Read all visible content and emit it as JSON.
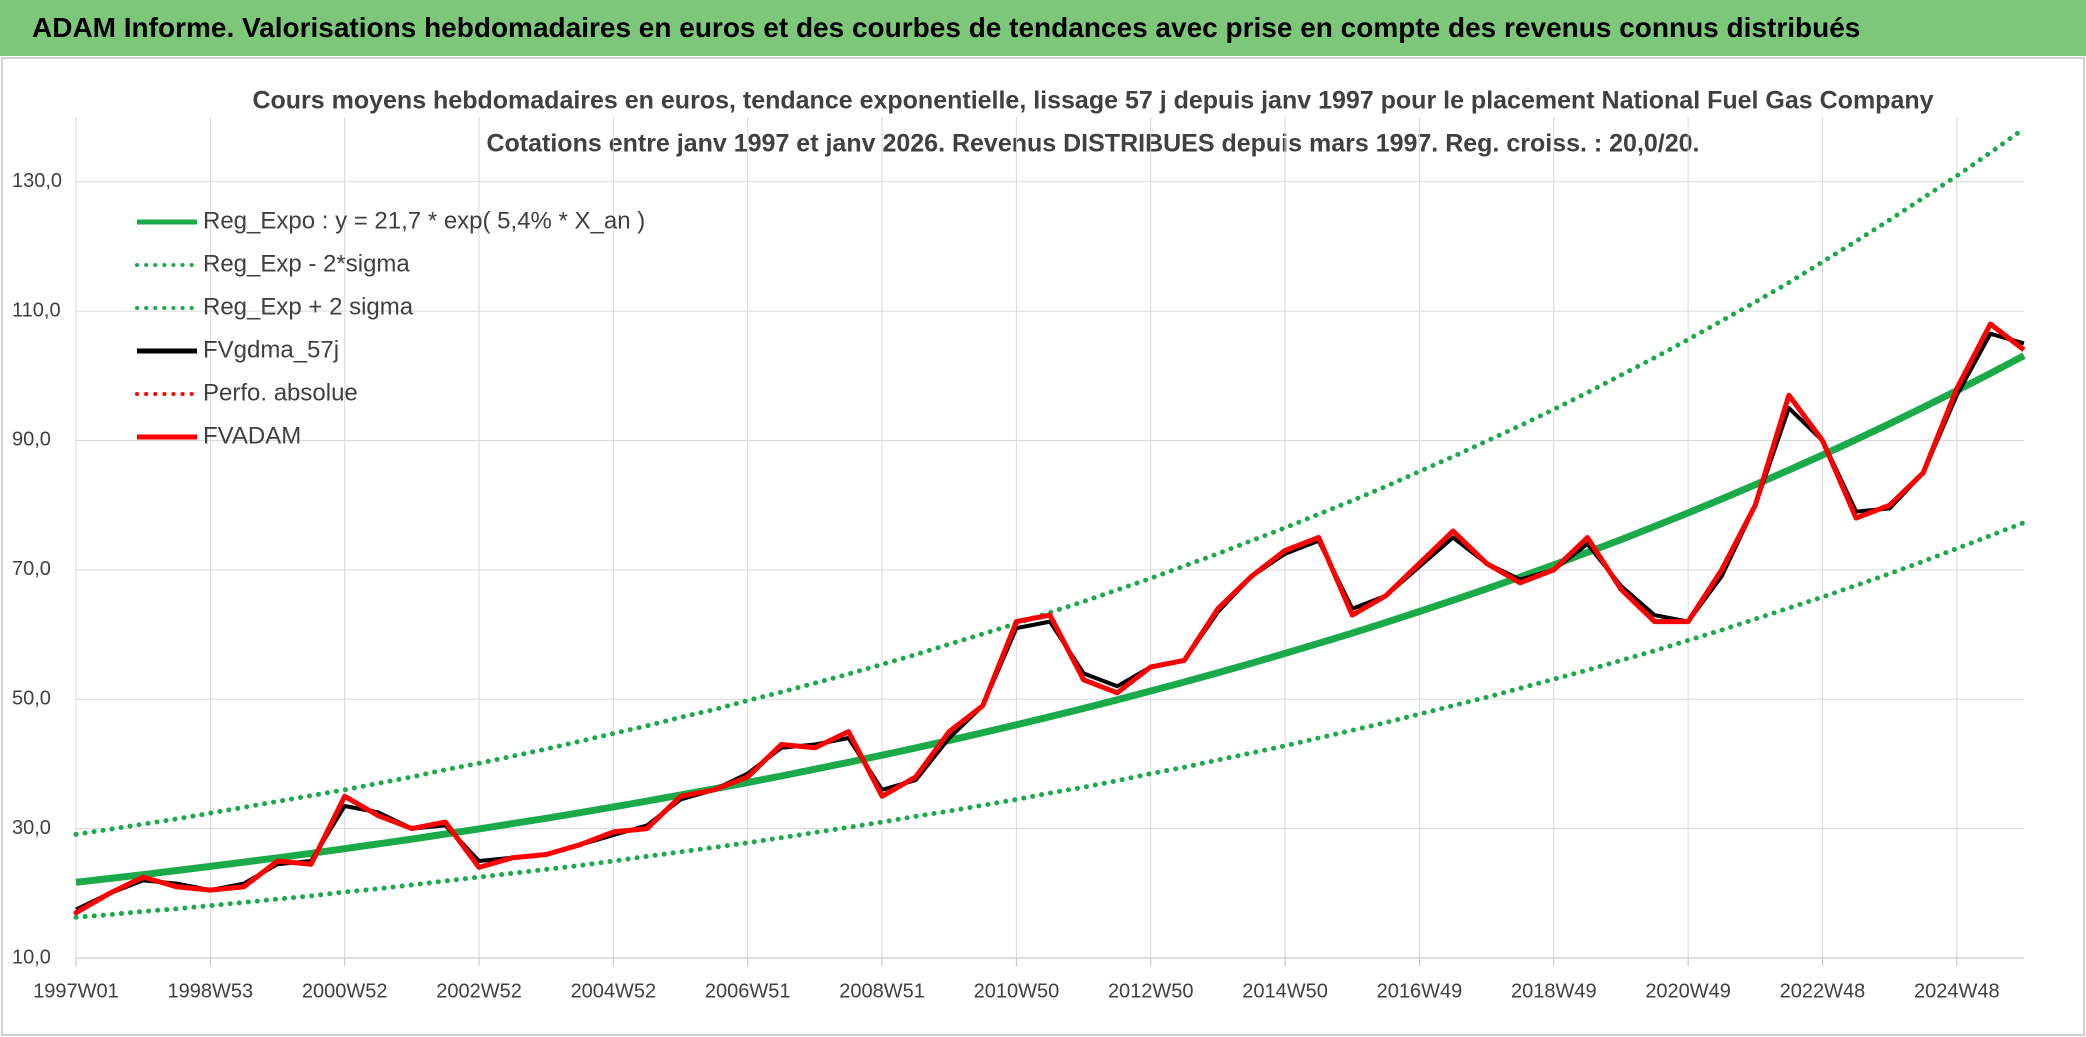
{
  "header": {
    "title": "ADAM Informe. Valorisations hebdomadaires en euros et des courbes de tendances avec prise en compte des revenus connus distribués"
  },
  "chart_data": {
    "type": "line",
    "title": "Cours moyens hebdomadaires en euros, tendance exponentielle, lissage 57 j depuis janv 1997 pour le placement National Fuel Gas Company",
    "subtitle": "Cotations entre janv 1997 et janv 2026. Revenus DISTRIBUES depuis mars 1997. Reg. croiss. : 20,0/20.",
    "categories": [
      "1997W01",
      null,
      null,
      null,
      "1998W53",
      null,
      null,
      null,
      "2000W52",
      null,
      null,
      null,
      "2002W52",
      null,
      null,
      null,
      "2004W52",
      null,
      null,
      null,
      "2006W51",
      null,
      null,
      null,
      "2008W51",
      null,
      null,
      null,
      "2010W50",
      null,
      null,
      null,
      "2012W50",
      null,
      null,
      null,
      "2014W50",
      null,
      null,
      null,
      "2016W49",
      null,
      null,
      null,
      "2018W49",
      null,
      null,
      null,
      "2020W49",
      null,
      null,
      null,
      "2022W48",
      null,
      null,
      null,
      "2024W48",
      null,
      null
    ],
    "ylim": [
      10,
      140
    ],
    "yticks": [
      {
        "value": 10,
        "label": "10,0"
      },
      {
        "value": 30,
        "label": "30,0"
      },
      {
        "value": 50,
        "label": "50,0"
      },
      {
        "value": 70,
        "label": "70,0"
      },
      {
        "value": 90,
        "label": "90,0"
      },
      {
        "value": 110,
        "label": "110,0"
      },
      {
        "value": 130,
        "label": "130,0"
      }
    ],
    "grid": true,
    "legend": "upper left",
    "series": [
      {
        "name": "Reg_Expo : y = 21,7 * exp( 5,4% *  X_an )",
        "color": "#1aaa4a",
        "style": "solid",
        "values": [
          21.7,
          22.29,
          22.89,
          23.52,
          24.16,
          24.82,
          25.49,
          26.19,
          26.9,
          27.63,
          28.38,
          29.16,
          29.95,
          30.77,
          31.6,
          32.46,
          33.35,
          34.26,
          35.19,
          36.15,
          37.13,
          38.14,
          39.18,
          40.25,
          41.35,
          42.47,
          43.63,
          44.82,
          46.04,
          47.3,
          48.58,
          49.91,
          51.27,
          52.66,
          54.1,
          55.57,
          57.08,
          58.64,
          60.23,
          61.88,
          63.56,
          65.29,
          67.07,
          68.9,
          70.77,
          72.7,
          74.68,
          76.72,
          78.81,
          80.95,
          83.16,
          85.42,
          87.75,
          90.14,
          92.59,
          95.11,
          97.71,
          100.37,
          103.1
        ]
      },
      {
        "name": "Reg_Exp - 2*sigma",
        "color": "#1aaa4a",
        "style": "dotted",
        "values": [
          16.3,
          16.7,
          17.2,
          17.6,
          18.1,
          18.6,
          19.1,
          19.6,
          20.2,
          20.7,
          21.3,
          21.9,
          22.5,
          23.1,
          23.7,
          24.3,
          25.0,
          25.7,
          26.4,
          27.1,
          27.8,
          28.6,
          29.4,
          30.2,
          31.0,
          31.9,
          32.7,
          33.6,
          34.5,
          35.5,
          36.4,
          37.4,
          38.5,
          39.5,
          40.6,
          41.7,
          42.8,
          44.0,
          45.2,
          46.4,
          47.7,
          49.0,
          50.3,
          51.7,
          53.1,
          54.5,
          56.0,
          57.5,
          59.1,
          60.7,
          62.4,
          64.1,
          65.8,
          67.6,
          69.4,
          71.3,
          73.3,
          75.3,
          77.3
        ]
      },
      {
        "name": "Reg_Exp + 2 sigma",
        "color": "#1aaa4a",
        "style": "dotted",
        "values": [
          29.1,
          29.9,
          30.7,
          31.5,
          32.4,
          33.3,
          34.2,
          35.1,
          36.0,
          37.0,
          38.0,
          39.1,
          40.1,
          41.2,
          42.3,
          43.5,
          44.7,
          45.9,
          47.2,
          48.4,
          49.8,
          51.1,
          52.5,
          53.9,
          55.4,
          56.9,
          58.5,
          60.1,
          61.7,
          63.4,
          65.1,
          66.9,
          68.7,
          70.6,
          72.5,
          74.5,
          76.5,
          78.6,
          80.7,
          82.9,
          85.2,
          87.5,
          89.9,
          92.3,
          94.8,
          97.4,
          100.1,
          102.8,
          105.6,
          108.5,
          111.4,
          114.4,
          117.6,
          120.8,
          124.1,
          127.5,
          130.9,
          134.5,
          138.2
        ]
      },
      {
        "name": "FVgdma_57j",
        "color": "#000000",
        "style": "solid",
        "values": [
          17.5,
          20,
          22,
          21.5,
          20.5,
          21.5,
          24.5,
          25,
          33.5,
          32.5,
          30,
          30.5,
          25,
          25.5,
          26,
          27.5,
          29,
          30.5,
          34.5,
          36,
          38.5,
          42.5,
          43,
          44,
          36,
          37.5,
          44,
          49,
          61,
          62,
          54,
          52,
          55,
          56,
          63.5,
          69,
          72.5,
          74.5,
          64,
          66,
          70.5,
          75,
          71,
          68.5,
          70,
          74,
          67.5,
          63,
          62,
          69,
          80,
          95,
          90,
          79,
          79.5,
          85,
          97,
          106.5,
          105
        ]
      },
      {
        "name": "Perfo. absolue",
        "color": "#ff0000",
        "style": "dotted",
        "values": [
          17,
          20,
          22.5,
          21,
          20.5,
          21,
          25,
          24.5,
          35,
          32,
          30,
          31,
          24,
          25.5,
          26,
          27.5,
          29.5,
          30,
          35,
          36,
          38,
          43,
          42.5,
          45,
          35,
          38,
          45,
          49,
          62,
          63,
          53,
          51,
          55,
          56,
          64,
          69,
          73,
          75,
          63,
          66,
          71,
          76,
          71,
          68,
          70,
          75,
          67,
          62,
          62,
          70,
          80,
          97,
          90,
          78,
          80,
          85,
          98,
          108,
          104
        ]
      },
      {
        "name": "FVADAM",
        "color": "#ff0000",
        "style": "solid",
        "values": [
          17,
          20,
          22.5,
          21,
          20.5,
          21,
          25,
          24.5,
          35,
          32,
          30,
          31,
          24,
          25.5,
          26,
          27.5,
          29.5,
          30,
          35,
          36,
          38,
          43,
          42.5,
          45,
          35,
          38,
          45,
          49,
          62,
          63,
          53,
          51,
          55,
          56,
          64,
          69,
          73,
          75,
          63,
          66,
          71,
          76,
          71,
          68,
          70,
          75,
          67,
          62,
          62,
          70,
          80,
          97,
          90,
          78,
          80,
          85,
          98,
          108,
          104
        ]
      }
    ]
  }
}
